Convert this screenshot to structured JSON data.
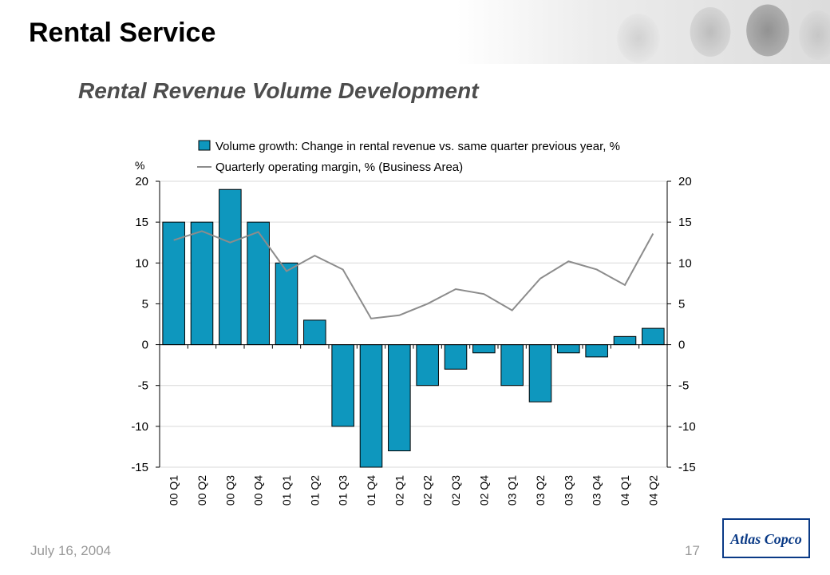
{
  "page": {
    "title": "Rental Service",
    "subtitle": "Rental Revenue Volume Development",
    "date": "July 16, 2004",
    "page_number": "17",
    "logo_text": "Atlas Copco"
  },
  "colors": {
    "bar_fill": "#0e97be",
    "line_color": "#8c8c8c",
    "gridline": "#d9d9d9"
  },
  "chart_data": {
    "type": "bar",
    "categories": [
      "00 Q1",
      "00 Q2",
      "00 Q3",
      "00 Q4",
      "01 Q1",
      "01 Q2",
      "01 Q3",
      "01 Q4",
      "02 Q1",
      "02 Q2",
      "02 Q3",
      "02 Q4",
      "03 Q1",
      "03 Q2",
      "03 Q3",
      "03 Q4",
      "04 Q1",
      "04 Q2"
    ],
    "series": [
      {
        "name": "Volume growth: Change in rental revenue vs. same quarter previous year, %",
        "type": "bar",
        "values": [
          15,
          15,
          19,
          15,
          10,
          3,
          -10,
          -15,
          -13,
          -5,
          -3,
          -1,
          -5,
          -7,
          -1,
          -1.5,
          1,
          2
        ]
      },
      {
        "name": "Quarterly operating margin, % (Business Area)",
        "type": "line",
        "values": [
          12.8,
          13.9,
          12.5,
          13.8,
          9.0,
          10.9,
          9.2,
          3.2,
          3.6,
          5.0,
          6.8,
          6.2,
          4.2,
          8.1,
          10.2,
          9.2,
          7.3,
          13.6
        ]
      }
    ],
    "ylabel": "%",
    "ylim": [
      -15,
      20
    ],
    "yticks": [
      20,
      15,
      10,
      5,
      0,
      -5,
      -10,
      -15
    ],
    "ytick_labels": [
      "20",
      "15",
      "10",
      "5",
      "0",
      "-5",
      "-10",
      "-15"
    ],
    "grid": true,
    "legend_position": "top"
  }
}
